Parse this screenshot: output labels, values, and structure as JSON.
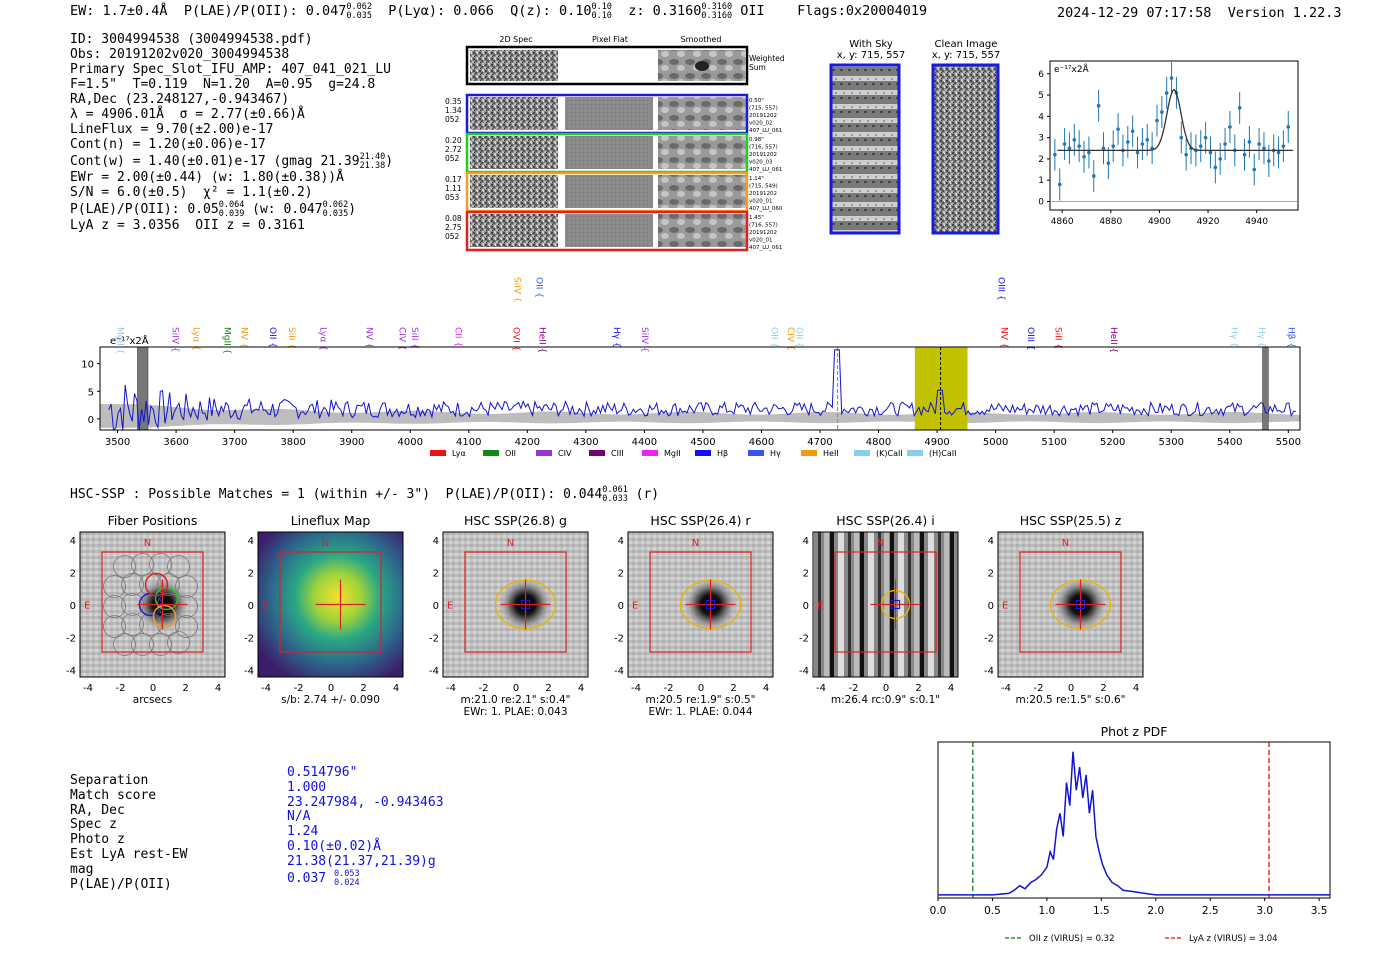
{
  "header": {
    "ew": "EW: 1.7±0.4Å",
    "plae_label": "P(LAE)/P(OII): 0.047",
    "plae_hi": "0.062",
    "plae_lo": "0.035",
    "plya": "P(Lyα): 0.066",
    "qz_label": "Q(z): 0.10",
    "qz_hi": "0.10",
    "qz_lo": "0.10",
    "z_label": "z: 0.3160",
    "z_hi": "0.3160",
    "z_lo": "0.3160",
    "z_line": "OII",
    "flags": "Flags:0x20004019",
    "datetime": "2024-12-29 07:17:58",
    "version": "Version 1.22.3"
  },
  "info": {
    "id": "ID: 3004994538 (3004994538.pdf)",
    "obs": "Obs: 20191202v020_3004994538",
    "primary": "Primary Spec_Slot_IFU_AMP: 407_041_021_LU",
    "f_t": "F=1.5\"  T=0.119  N=1.20  A=0.95  g=24.8",
    "radec": "RA,Dec (23.248127,-0.943467)",
    "lambda": "λ = 4906.01Å  σ = 2.77(±0.66)Å",
    "lineflux": "LineFlux = 9.70(±2.00)e-17",
    "contn": "Cont(n) = 1.20(±0.06)e-17",
    "contw": "Cont(w) = 1.40(±0.01)e-17 (gmag 21.39",
    "contw_hi": "21.40",
    "contw_lo": "21.38",
    "contw_end": ")",
    "ewr": "EWr = 2.00(±0.44) (w: 1.80(±0.38))Å",
    "sn": "S/N = 6.0(±0.5)  χ² = 1.1(±0.2)",
    "plae": "P(LAE)/P(OII): 0.05",
    "plae_hi": "0.064",
    "plae_lo": "0.039",
    "plae_w": "(w: 0.047",
    "plae_w_hi": "0.062",
    "plae_w_lo": "0.035",
    "plae_end": ")",
    "lya": "LyA z = 3.0356  OII z = 0.3161"
  },
  "spec2d": {
    "headers": [
      "2D Spec",
      "Pixel Flat",
      "Smoothed"
    ],
    "weighted_label": "Weighted\nSum",
    "rows": [
      {
        "left": [
          "0.35",
          "1.34",
          "052"
        ],
        "right": [
          "0.50\"",
          "(715, 557)",
          "20191202",
          "v020_02",
          "407_LU_061"
        ],
        "color": "#1a1adb"
      },
      {
        "left": [
          "0.20",
          "2.72",
          "052"
        ],
        "right": [
          "0.98\"",
          "(716, 557)",
          "20191202",
          "v020_03",
          "407_LU_061"
        ],
        "color": "#22cc22"
      },
      {
        "left": [
          "0.17",
          "1.11",
          "053"
        ],
        "right": [
          "1.14\"",
          "(715, 549)",
          "20191202",
          "v020_01",
          "407_LU_060"
        ],
        "color": "#f0a020"
      },
      {
        "left": [
          "0.08",
          "2.75",
          "052"
        ],
        "right": [
          "1.45\"",
          "(716, 557)",
          "20191202",
          "v020_01",
          "407_LU_061"
        ],
        "color": "#e02020"
      }
    ]
  },
  "cutouts": {
    "sky_title": "With Sky",
    "sky_sub": "x, y: 715, 557",
    "clean_title": "Clean Image",
    "clean_sub": "x, y: 715, 557"
  },
  "fit_chart": {
    "ylabel": "e⁻¹⁷x2Å"
  },
  "full_spec": {
    "ylabel": "e⁻¹⁷x2Å",
    "legend": [
      {
        "name": "Lyα",
        "color": "#ee1111"
      },
      {
        "name": "OII",
        "color": "#118811"
      },
      {
        "name": "CIV",
        "color": "#9933dd"
      },
      {
        "name": "CIII",
        "color": "#770077"
      },
      {
        "name": "MgII",
        "color": "#ee22ee"
      },
      {
        "name": "Hβ",
        "color": "#1111ee"
      },
      {
        "name": "Hγ",
        "color": "#3355ee"
      },
      {
        "name": "HeII",
        "color": "#f09a10"
      },
      {
        "name": "(K)CaII",
        "color": "#88ccee"
      },
      {
        "name": "(H)CaII",
        "color": "#88ccee"
      }
    ],
    "lines": [
      {
        "name": "MgII",
        "w": 3500,
        "row": 1,
        "color": "#88ccee"
      },
      {
        "name": "SiIV",
        "w": 3594,
        "row": 1,
        "color": "#9933dd"
      },
      {
        "name": "Lyα",
        "w": 3630,
        "row": 1,
        "color": "#f09a10"
      },
      {
        "name": "MgII",
        "w": 3683,
        "row": 1,
        "color": "#118811"
      },
      {
        "name": "NV",
        "w": 3712,
        "row": 1,
        "color": "#f09a10"
      },
      {
        "name": "OII",
        "w": 3760,
        "row": 1,
        "color": "#1111ee"
      },
      {
        "name": "SiII",
        "w": 3793,
        "row": 1,
        "color": "#f09a10"
      },
      {
        "name": "Lyα",
        "w": 3847,
        "row": 1,
        "color": "#9933dd"
      },
      {
        "name": "NV",
        "w": 3925,
        "row": 1,
        "color": "#9933dd"
      },
      {
        "name": "CIV",
        "w": 3982,
        "row": 1,
        "color": "#9933dd"
      },
      {
        "name": "SiII",
        "w": 4003,
        "row": 1,
        "color": "#9933dd"
      },
      {
        "name": "CII",
        "w": 4077,
        "row": 1,
        "color": "#ee22ee"
      },
      {
        "name": "OVI",
        "w": 4176,
        "row": 1,
        "color": "#ee1111"
      },
      {
        "name": "HeII",
        "w": 4221,
        "row": 1,
        "color": "#770077"
      },
      {
        "name": "SiIV",
        "w": 4178,
        "row": 0,
        "color": "#f09a10"
      },
      {
        "name": "OII",
        "w": 4216,
        "row": 0,
        "color": "#3355ee"
      },
      {
        "name": "Hγ",
        "w": 4348,
        "row": 1,
        "color": "#1111ee"
      },
      {
        "name": "SiIV",
        "w": 4396,
        "row": 1,
        "color": "#9933dd"
      },
      {
        "name": "OII",
        "w": 4617,
        "row": 1,
        "color": "#88ccee"
      },
      {
        "name": "CIV",
        "w": 4645,
        "row": 1,
        "color": "#f09a10"
      },
      {
        "name": "OII",
        "w": 4660,
        "row": 1,
        "color": "#88ccee"
      },
      {
        "name": "OIII",
        "w": 5005,
        "row": 0,
        "color": "#1111ee"
      },
      {
        "name": "NV",
        "w": 5010,
        "row": 1,
        "color": "#ee1111"
      },
      {
        "name": "OIII",
        "w": 5055,
        "row": 1,
        "color": "#1111ee"
      },
      {
        "name": "SiII",
        "w": 5102,
        "row": 1,
        "color": "#ee1111"
      },
      {
        "name": "HeII",
        "w": 5197,
        "row": 1,
        "color": "#770077"
      },
      {
        "name": "Hγ",
        "w": 5403,
        "row": 1,
        "color": "#88ccee"
      },
      {
        "name": "Hγ",
        "w": 5450,
        "row": 1,
        "color": "#88ccee"
      },
      {
        "name": "Hβ",
        "w": 5500,
        "row": 1,
        "color": "#3355ee"
      }
    ]
  },
  "hsc": {
    "title": "HSC-SSP : Possible Matches = 1 (within +/- 3\")  P(LAE)/P(OII): 0.044",
    "title_hi": "0.061",
    "title_lo": "0.033",
    "title_end": " (r)",
    "panels": [
      {
        "title": "Fiber Positions",
        "sub1": "arcsecs",
        "sub2": ""
      },
      {
        "title": "Lineflux Map",
        "sub1": "s/b: 2.74 +/- 0.090",
        "sub2": ""
      },
      {
        "title": "HSC SSP(26.8) g",
        "sub1": "m:21.0  re:2.1\"  s:0.4\"",
        "sub2": "EWr: 1. PLAE: 0.043"
      },
      {
        "title": "HSC SSP(26.4) r",
        "sub1": "m:20.5  re:1.9\"  s:0.5\"",
        "sub2": "EWr: 1. PLAE: 0.044"
      },
      {
        "title": "HSC SSP(26.4) i",
        "sub1": "m:26.4 rc:0.9\"  s:0.1\"",
        "sub2": ""
      },
      {
        "title": "HSC SSP(25.5) z",
        "sub1": "m:20.5  re:1.5\"  s:0.6\"",
        "sub2": ""
      }
    ],
    "compass_n": "N",
    "compass_e": "E"
  },
  "match": {
    "rows": [
      {
        "label": "Separation",
        "value": "0.514796\""
      },
      {
        "label": "Match score",
        "value": "1.000"
      },
      {
        "label": "RA, Dec",
        "value": "23.247984, -0.943463"
      },
      {
        "label": "Spec z",
        "value": "N/A"
      },
      {
        "label": "Photo z",
        "value": "1.24"
      },
      {
        "label": "Est LyA rest-EW",
        "value": "0.10(±0.02)Å"
      },
      {
        "label": "mag",
        "value": "21.38(21.37,21.39)g"
      },
      {
        "label": "P(LAE)/P(OII)",
        "value": "0.037"
      }
    ],
    "plae_hi": "0.053",
    "plae_lo": "0.024"
  },
  "chart_data": [
    {
      "type": "scatter",
      "name": "line-fit",
      "title": "",
      "ylabel": "e⁻¹⁷x2Å",
      "xlim": [
        4855,
        4957
      ],
      "ylim": [
        -0.4,
        6.6
      ],
      "xticks": [
        4860,
        4880,
        4900,
        4920,
        4940
      ],
      "yticks": [
        0,
        1,
        2,
        3,
        4,
        5,
        6
      ],
      "x": [
        4857,
        4859,
        4861,
        4863,
        4865,
        4867,
        4869,
        4871,
        4873,
        4875,
        4877,
        4879,
        4881,
        4883,
        4885,
        4887,
        4889,
        4891,
        4893,
        4895,
        4897,
        4899,
        4901,
        4903,
        4905,
        4907,
        4909,
        4911,
        4913,
        4915,
        4917,
        4919,
        4921,
        4923,
        4925,
        4927,
        4929,
        4931,
        4933,
        4935,
        4937,
        4939,
        4941,
        4943,
        4945,
        4947,
        4949,
        4951,
        4953
      ],
      "y": [
        2.2,
        0.8,
        2.7,
        2.5,
        2.9,
        2.6,
        2.1,
        2.3,
        1.2,
        4.5,
        2.5,
        1.8,
        2.6,
        3.4,
        2.4,
        2.8,
        3.3,
        2.3,
        2.7,
        2.9,
        2.5,
        3.8,
        4.2,
        5.1,
        5.8,
        5.1,
        3.0,
        2.2,
        2.5,
        2.4,
        2.6,
        3.0,
        2.3,
        1.6,
        2.0,
        2.7,
        3.5,
        2.4,
        4.4,
        2.2,
        2.8,
        1.5,
        2.7,
        2.5,
        1.9,
        2.4,
        2.3,
        2.6,
        3.5
      ],
      "err": 0.75,
      "fit": {
        "continuum": 2.4,
        "center": 4906.0,
        "sigma": 2.9,
        "amplitude": 2.85
      }
    },
    {
      "type": "line",
      "name": "full-spectrum",
      "ylabel": "e⁻¹⁷x2Å",
      "xlim": [
        3470,
        5520
      ],
      "ylim": [
        -2,
        13
      ],
      "xticks": [
        3500,
        3600,
        3700,
        3800,
        3900,
        4000,
        4100,
        4200,
        4300,
        4400,
        4500,
        4600,
        4700,
        4800,
        4900,
        5000,
        5100,
        5200,
        5300,
        5400,
        5500
      ],
      "yticks": [
        0,
        5,
        10
      ],
      "highlight_window": [
        4862,
        4952
      ],
      "line_center": 4906,
      "masked_regions": [
        [
          3534,
          3552
        ],
        [
          5456,
          5466
        ]
      ],
      "dashed_at": 4730,
      "continuum_level": 1.8
    },
    {
      "type": "line",
      "name": "phot-z-pdf",
      "title": "Phot z PDF",
      "xlim": [
        0,
        3.6
      ],
      "xticks": [
        0.0,
        0.5,
        1.0,
        1.5,
        2.0,
        2.5,
        3.0,
        3.5
      ],
      "x": [
        0.0,
        0.3,
        0.5,
        0.65,
        0.7,
        0.75,
        0.8,
        0.85,
        0.9,
        0.95,
        1.0,
        1.03,
        1.06,
        1.09,
        1.12,
        1.15,
        1.18,
        1.21,
        1.24,
        1.27,
        1.3,
        1.33,
        1.36,
        1.39,
        1.42,
        1.45,
        1.48,
        1.51,
        1.55,
        1.6,
        1.65,
        1.7,
        1.8,
        1.9,
        2.0,
        2.2,
        2.5,
        3.0,
        3.6
      ],
      "y": [
        0.02,
        0.02,
        0.02,
        0.03,
        0.05,
        0.08,
        0.06,
        0.1,
        0.12,
        0.15,
        0.2,
        0.3,
        0.25,
        0.45,
        0.55,
        0.4,
        0.75,
        0.6,
        0.95,
        0.7,
        0.85,
        0.65,
        0.8,
        0.55,
        0.7,
        0.4,
        0.3,
        0.22,
        0.15,
        0.1,
        0.08,
        0.05,
        0.04,
        0.03,
        0.02,
        0.02,
        0.02,
        0.02,
        0.02
      ],
      "vlines": [
        {
          "x": 0.32,
          "color": "#117711",
          "label": "OII z (VIRUS) = 0.32"
        },
        {
          "x": 3.04,
          "color": "#dd1111",
          "label": "LyA z (VIRUS) = 3.04"
        }
      ]
    }
  ]
}
